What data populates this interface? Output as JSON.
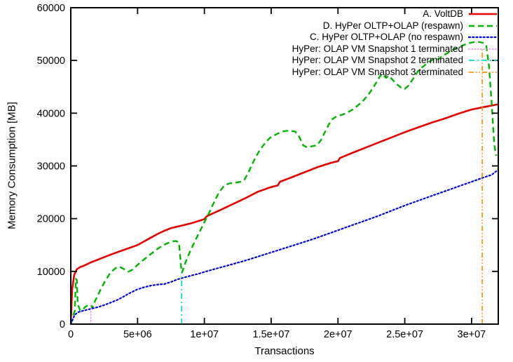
{
  "chart_data": {
    "type": "line",
    "title": "",
    "xlabel": "Transactions",
    "ylabel": "Memory Consumption [MB]",
    "xlim": [
      0,
      32000000
    ],
    "ylim": [
      0,
      60000
    ],
    "grid": false,
    "legend_position": "top-right",
    "x_ticks": [
      {
        "v": 0,
        "label": "0"
      },
      {
        "v": 5000000,
        "label": "5e+06"
      },
      {
        "v": 10000000,
        "label": "1e+07"
      },
      {
        "v": 15000000,
        "label": "1.5e+07"
      },
      {
        "v": 20000000,
        "label": "2e+07"
      },
      {
        "v": 25000000,
        "label": "2.5e+07"
      },
      {
        "v": 30000000,
        "label": "3e+07"
      }
    ],
    "y_ticks": [
      {
        "v": 0,
        "label": "0"
      },
      {
        "v": 10000,
        "label": "10000"
      },
      {
        "v": 20000,
        "label": "20000"
      },
      {
        "v": 30000,
        "label": "30000"
      },
      {
        "v": 40000,
        "label": "40000"
      },
      {
        "v": 50000,
        "label": "50000"
      },
      {
        "v": 60000,
        "label": "60000"
      }
    ],
    "series": [
      {
        "name": "A. VoltDB",
        "color": "#e60000",
        "dash": "",
        "cap": "butt",
        "width": 2.6,
        "points": [
          [
            0,
            0
          ],
          [
            100000,
            6500
          ],
          [
            250000,
            9300
          ],
          [
            450000,
            10400
          ],
          [
            700000,
            10800
          ],
          [
            1000000,
            11100
          ],
          [
            1500000,
            11700
          ],
          [
            2000000,
            12200
          ],
          [
            3000000,
            13200
          ],
          [
            4000000,
            14100
          ],
          [
            5000000,
            15000
          ],
          [
            5500000,
            15700
          ],
          [
            6000000,
            16400
          ],
          [
            6500000,
            17100
          ],
          [
            7000000,
            17700
          ],
          [
            7500000,
            18200
          ],
          [
            8000000,
            18500
          ],
          [
            9000000,
            19100
          ],
          [
            10000000,
            19900
          ],
          [
            10200000,
            20500
          ],
          [
            11000000,
            21400
          ],
          [
            12000000,
            22600
          ],
          [
            13000000,
            23800
          ],
          [
            14000000,
            25100
          ],
          [
            15000000,
            26000
          ],
          [
            15500000,
            26300
          ],
          [
            15650000,
            27000
          ],
          [
            16500000,
            27800
          ],
          [
            17500000,
            28800
          ],
          [
            18500000,
            29800
          ],
          [
            19500000,
            30600
          ],
          [
            20000000,
            30900
          ],
          [
            20150000,
            31500
          ],
          [
            21000000,
            32400
          ],
          [
            22000000,
            33400
          ],
          [
            23000000,
            34400
          ],
          [
            24000000,
            35400
          ],
          [
            25000000,
            36400
          ],
          [
            26000000,
            37300
          ],
          [
            27000000,
            38200
          ],
          [
            28000000,
            39000
          ],
          [
            29000000,
            39900
          ],
          [
            30000000,
            40700
          ],
          [
            31000000,
            41200
          ],
          [
            32000000,
            41700
          ]
        ]
      },
      {
        "name": "D. HyPer OLTP+OLAP (respawn)",
        "color": "#00b400",
        "dash": "8 5",
        "cap": "butt",
        "width": 2.4,
        "points": [
          [
            0,
            0
          ],
          [
            150000,
            1500
          ],
          [
            300000,
            2500
          ],
          [
            380000,
            8600
          ],
          [
            450000,
            8400
          ],
          [
            520000,
            3800
          ],
          [
            700000,
            2600
          ],
          [
            900000,
            2800
          ],
          [
            1100000,
            3300
          ],
          [
            1400000,
            3700
          ],
          [
            1500000,
            3650
          ],
          [
            1600000,
            3050
          ],
          [
            1800000,
            4300
          ],
          [
            2000000,
            5300
          ],
          [
            2300000,
            6900
          ],
          [
            2600000,
            8300
          ],
          [
            2900000,
            9500
          ],
          [
            3200000,
            10300
          ],
          [
            3500000,
            10900
          ],
          [
            3700000,
            10800
          ],
          [
            4000000,
            10400
          ],
          [
            4300000,
            9950
          ],
          [
            4600000,
            10300
          ],
          [
            4900000,
            11000
          ],
          [
            5200000,
            11700
          ],
          [
            5600000,
            12500
          ],
          [
            6000000,
            13300
          ],
          [
            6400000,
            14100
          ],
          [
            6800000,
            14800
          ],
          [
            7200000,
            15300
          ],
          [
            7600000,
            15700
          ],
          [
            7900000,
            15750
          ],
          [
            8100000,
            15400
          ],
          [
            8250000,
            11000
          ],
          [
            8320000,
            9750
          ],
          [
            8600000,
            11800
          ],
          [
            9000000,
            14200
          ],
          [
            9500000,
            16800
          ],
          [
            10000000,
            19300
          ],
          [
            10300000,
            20800
          ],
          [
            10700000,
            23000
          ],
          [
            11100000,
            25000
          ],
          [
            11500000,
            26300
          ],
          [
            11900000,
            26700
          ],
          [
            12300000,
            26800
          ],
          [
            12700000,
            27000
          ],
          [
            13000000,
            27400
          ],
          [
            13300000,
            28800
          ],
          [
            13700000,
            31000
          ],
          [
            14100000,
            32800
          ],
          [
            14500000,
            34200
          ],
          [
            14900000,
            35300
          ],
          [
            15300000,
            35900
          ],
          [
            15800000,
            36500
          ],
          [
            16300000,
            36700
          ],
          [
            16800000,
            36500
          ],
          [
            17100000,
            35500
          ],
          [
            17400000,
            33900
          ],
          [
            17700000,
            33500
          ],
          [
            18000000,
            33700
          ],
          [
            18400000,
            33900
          ],
          [
            18700000,
            34800
          ],
          [
            19000000,
            36300
          ],
          [
            19300000,
            37800
          ],
          [
            19600000,
            38900
          ],
          [
            19900000,
            39400
          ],
          [
            20300000,
            39700
          ],
          [
            20700000,
            40100
          ],
          [
            21100000,
            40700
          ],
          [
            21500000,
            41500
          ],
          [
            21900000,
            42400
          ],
          [
            22300000,
            43600
          ],
          [
            22700000,
            45100
          ],
          [
            23100000,
            46800
          ],
          [
            23300000,
            47500
          ],
          [
            23600000,
            46700
          ],
          [
            23800000,
            47100
          ],
          [
            24100000,
            46300
          ],
          [
            24400000,
            45500
          ],
          [
            24700000,
            44900
          ],
          [
            25000000,
            44600
          ],
          [
            25300000,
            45300
          ],
          [
            25700000,
            46800
          ],
          [
            26000000,
            48000
          ],
          [
            26400000,
            48900
          ],
          [
            26800000,
            49700
          ],
          [
            27200000,
            50300
          ],
          [
            27500000,
            50200
          ],
          [
            27800000,
            50800
          ],
          [
            28200000,
            51400
          ],
          [
            28600000,
            52000
          ],
          [
            29000000,
            52500
          ],
          [
            29400000,
            52900
          ],
          [
            29800000,
            53300
          ],
          [
            30200000,
            53500
          ],
          [
            30600000,
            53500
          ],
          [
            30900000,
            53300
          ],
          [
            31100000,
            52800
          ],
          [
            31300000,
            49000
          ],
          [
            31500000,
            42000
          ],
          [
            31700000,
            34000
          ],
          [
            31850000,
            31900
          ]
        ]
      },
      {
        "name": "C. HyPer OLTP+OLAP (no respawn)",
        "color": "#0000e6",
        "dash": "2 3.2",
        "cap": "round",
        "width": 2.2,
        "points": [
          [
            0,
            0
          ],
          [
            300000,
            1800
          ],
          [
            600000,
            2300
          ],
          [
            1000000,
            2600
          ],
          [
            1500000,
            2900
          ],
          [
            2000000,
            3200
          ],
          [
            2500000,
            3600
          ],
          [
            3000000,
            4100
          ],
          [
            3500000,
            4600
          ],
          [
            4000000,
            5300
          ],
          [
            4500000,
            6000
          ],
          [
            5000000,
            6600
          ],
          [
            5500000,
            7000
          ],
          [
            6000000,
            7300
          ],
          [
            6500000,
            7500
          ],
          [
            7000000,
            7600
          ],
          [
            7500000,
            8000
          ],
          [
            8000000,
            8500
          ],
          [
            8300000,
            8700
          ],
          [
            9000000,
            9200
          ],
          [
            9500000,
            9500
          ],
          [
            10000000,
            9900
          ],
          [
            11000000,
            10600
          ],
          [
            12000000,
            11300
          ],
          [
            13000000,
            12000
          ],
          [
            14000000,
            12800
          ],
          [
            15000000,
            13600
          ],
          [
            16000000,
            14400
          ],
          [
            17000000,
            15200
          ],
          [
            18000000,
            16000
          ],
          [
            19000000,
            16900
          ],
          [
            20000000,
            17800
          ],
          [
            21000000,
            18700
          ],
          [
            22000000,
            19600
          ],
          [
            23000000,
            20500
          ],
          [
            24000000,
            21500
          ],
          [
            25000000,
            22500
          ],
          [
            26000000,
            23400
          ],
          [
            27000000,
            24300
          ],
          [
            28000000,
            25200
          ],
          [
            29000000,
            26100
          ],
          [
            30000000,
            27000
          ],
          [
            31000000,
            27900
          ],
          [
            31500000,
            28300
          ],
          [
            32000000,
            29300
          ]
        ]
      },
      {
        "name": "HyPer: OLAP VM Snapshot 1 terminated",
        "color": "#f078f0",
        "dash": "1.2 3",
        "cap": "round",
        "width": 1.4,
        "points": [
          [
            1500000,
            0
          ],
          [
            1500000,
            3700
          ]
        ]
      },
      {
        "name": "HyPer: OLAP VM Snapshot 2 terminated",
        "color": "#00dcdc",
        "dash": "8 4 2 4",
        "cap": "butt",
        "width": 1.7,
        "points": [
          [
            8300000,
            0
          ],
          [
            8300000,
            9750
          ]
        ]
      },
      {
        "name": "HyPer: OLAP VM Snapshot 3 terminated",
        "color": "#ff9400",
        "dash": "7 3 1.5 3 1.5 3",
        "cap": "butt",
        "width": 1.7,
        "points": [
          [
            30800000,
            0
          ],
          [
            30800000,
            52500
          ]
        ]
      }
    ]
  }
}
